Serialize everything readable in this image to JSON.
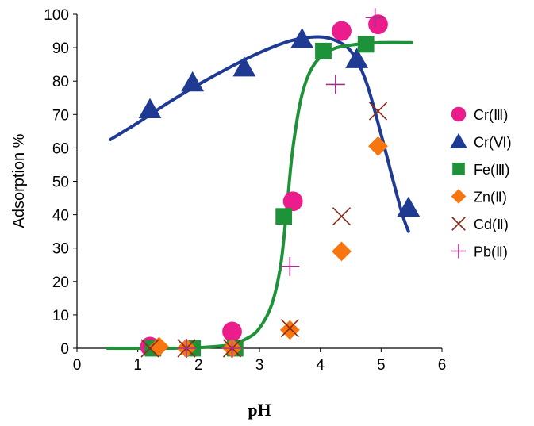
{
  "chart_data": {
    "type": "scatter",
    "xlabel": "pH",
    "ylabel": "Adsorption %",
    "xlim": [
      0,
      6
    ],
    "ylim": [
      0,
      100
    ],
    "xticks": [
      "0",
      "1",
      "2",
      "3",
      "4",
      "5",
      "6"
    ],
    "yticks": [
      "0",
      "10",
      "20",
      "30",
      "40",
      "50",
      "60",
      "70",
      "80",
      "90",
      "100"
    ],
    "grid": false,
    "legend_position": "right",
    "series": [
      {
        "name": "Cr(Ⅲ)",
        "marker": "circle",
        "color": "#ec1c8c",
        "points": [
          [
            1.2,
            0.5
          ],
          [
            2.55,
            5
          ],
          [
            3.55,
            44
          ],
          [
            4.35,
            95
          ],
          [
            4.95,
            97
          ]
        ]
      },
      {
        "name": "Cr(Ⅵ)",
        "marker": "triangle",
        "color": "#1f3a93",
        "points": [
          [
            1.2,
            71.5
          ],
          [
            1.9,
            79.5
          ],
          [
            2.75,
            84
          ],
          [
            3.7,
            92.5
          ],
          [
            4.6,
            86.5
          ],
          [
            5.45,
            42
          ]
        ]
      },
      {
        "name": "Fe(Ⅲ)",
        "marker": "square",
        "color": "#1d9239",
        "points": [
          [
            1.25,
            0
          ],
          [
            1.9,
            0
          ],
          [
            2.6,
            0
          ],
          [
            3.4,
            39.5
          ],
          [
            4.05,
            89
          ],
          [
            4.75,
            91
          ]
        ]
      },
      {
        "name": "Zn(Ⅱ)",
        "marker": "diamond",
        "color": "#f7760f",
        "points": [
          [
            1.35,
            0.5
          ],
          [
            1.8,
            0
          ],
          [
            2.55,
            0
          ],
          [
            3.5,
            5.5
          ],
          [
            4.35,
            29
          ],
          [
            4.95,
            60.5
          ]
        ]
      },
      {
        "name": "Cd(Ⅱ)",
        "marker": "x",
        "color": "#8b2a1a",
        "points": [
          [
            1.2,
            0
          ],
          [
            1.8,
            0
          ],
          [
            2.55,
            0
          ],
          [
            3.5,
            6
          ],
          [
            4.35,
            39.5
          ],
          [
            4.95,
            71
          ]
        ]
      },
      {
        "name": "Pb(Ⅱ)",
        "marker": "plus",
        "color": "#a8308c",
        "points": [
          [
            1.8,
            0
          ],
          [
            2.55,
            0
          ],
          [
            3.5,
            24.5
          ],
          [
            4.25,
            79
          ],
          [
            4.9,
            99
          ]
        ]
      }
    ],
    "fit_curves": [
      {
        "of": "Cr(Ⅵ)",
        "color": "#1f3a93",
        "points": [
          [
            0.55,
            62.5
          ],
          [
            1.0,
            67.5
          ],
          [
            1.5,
            73.5
          ],
          [
            2.0,
            79
          ],
          [
            2.5,
            84
          ],
          [
            3.0,
            88.5
          ],
          [
            3.5,
            92
          ],
          [
            3.9,
            93.2
          ],
          [
            4.2,
            92.5
          ],
          [
            4.5,
            89
          ],
          [
            4.75,
            80
          ],
          [
            5.0,
            64
          ],
          [
            5.2,
            50
          ],
          [
            5.35,
            40
          ],
          [
            5.45,
            35
          ]
        ]
      },
      {
        "of": "Fe(Ⅲ)",
        "color": "#1d9239",
        "points": [
          [
            0.5,
            0
          ],
          [
            1.5,
            0
          ],
          [
            2.0,
            0.2
          ],
          [
            2.5,
            1
          ],
          [
            2.8,
            3
          ],
          [
            3.0,
            6
          ],
          [
            3.2,
            13
          ],
          [
            3.35,
            25
          ],
          [
            3.45,
            42
          ],
          [
            3.55,
            60
          ],
          [
            3.7,
            76
          ],
          [
            3.9,
            85
          ],
          [
            4.2,
            89.5
          ],
          [
            4.6,
            91
          ],
          [
            5.0,
            91.5
          ],
          [
            5.5,
            91.5
          ]
        ]
      }
    ]
  }
}
